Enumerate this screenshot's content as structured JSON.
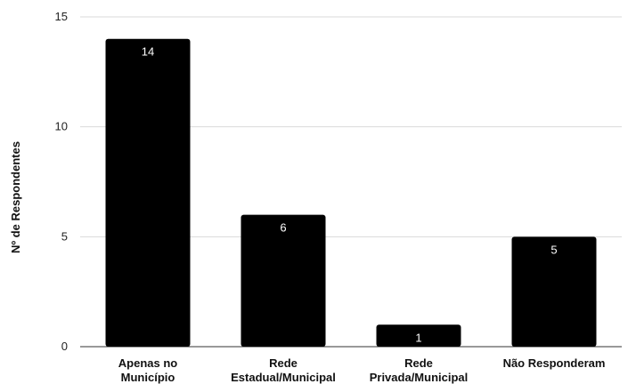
{
  "chart_data": {
    "type": "bar",
    "categories": [
      [
        "Apenas no",
        "Município"
      ],
      [
        "Rede",
        "Estadual/Municipal"
      ],
      [
        "Rede",
        "Privada/Municipal"
      ],
      [
        "Não Responderam"
      ]
    ],
    "values": [
      14,
      6,
      1,
      5
    ],
    "data_labels": [
      "14",
      "6",
      "1",
      "5"
    ],
    "ylabel": "Nº de Respondentes",
    "ylim": [
      0,
      15
    ],
    "yticks": [
      0,
      5,
      10,
      15
    ],
    "grid": true,
    "legend": "none",
    "bar_color": "#000000",
    "grid_color": "#d9d9d9",
    "data_label_color": "#ffffff"
  }
}
